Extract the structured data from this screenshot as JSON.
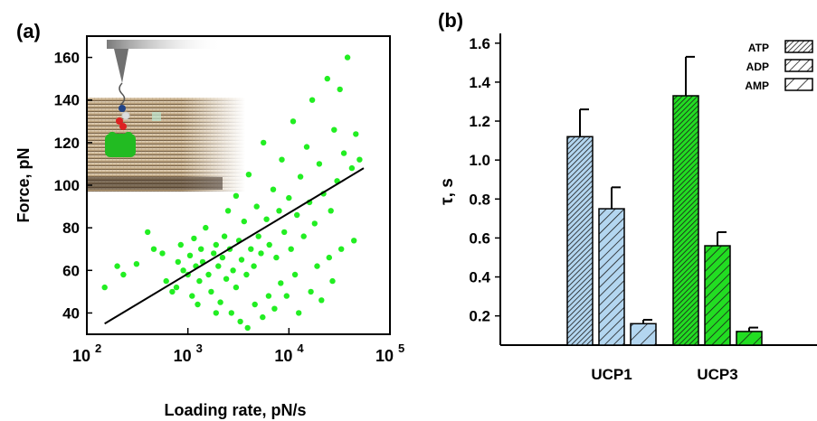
{
  "chart_data": [
    {
      "panel_label": "(a)",
      "type": "scatter",
      "xlabel": "Loading rate, pN/s",
      "ylabel": "Force, pN",
      "xscale": "log",
      "xlim": [
        100,
        100000
      ],
      "ylim": [
        30,
        170
      ],
      "xticks": [
        {
          "value": 100,
          "base": "10",
          "exp": "2"
        },
        {
          "value": 1000,
          "base": "10",
          "exp": "3"
        },
        {
          "value": 10000,
          "base": "10",
          "exp": "4"
        },
        {
          "value": 100000,
          "base": "10",
          "exp": "5"
        }
      ],
      "yticks": [
        40,
        60,
        80,
        100,
        120,
        140,
        160
      ],
      "series": [
        {
          "color": "#22ee22",
          "points": [
            [
              150,
              52
            ],
            [
              200,
              62
            ],
            [
              230,
              58
            ],
            [
              310,
              63
            ],
            [
              400,
              78
            ],
            [
              460,
              70
            ],
            [
              560,
              68
            ],
            [
              610,
              55
            ],
            [
              700,
              50
            ],
            [
              770,
              52
            ],
            [
              800,
              64
            ],
            [
              850,
              72
            ],
            [
              900,
              60
            ],
            [
              1000,
              58
            ],
            [
              1050,
              67
            ],
            [
              1100,
              48
            ],
            [
              1150,
              75
            ],
            [
              1200,
              62
            ],
            [
              1300,
              55
            ],
            [
              1350,
              70
            ],
            [
              1400,
              64
            ],
            [
              1500,
              80
            ],
            [
              1600,
              58
            ],
            [
              1700,
              50
            ],
            [
              1800,
              68
            ],
            [
              1900,
              72
            ],
            [
              2000,
              62
            ],
            [
              2100,
              45
            ],
            [
              2200,
              66
            ],
            [
              2300,
              76
            ],
            [
              2400,
              56
            ],
            [
              2500,
              88
            ],
            [
              2600,
              70
            ],
            [
              2800,
              60
            ],
            [
              3000,
              52
            ],
            [
              3000,
              95
            ],
            [
              3200,
              74
            ],
            [
              3400,
              65
            ],
            [
              3600,
              83
            ],
            [
              3800,
              58
            ],
            [
              4000,
              105
            ],
            [
              4200,
              70
            ],
            [
              4500,
              62
            ],
            [
              4800,
              90
            ],
            [
              5000,
              76
            ],
            [
              5300,
              68
            ],
            [
              5600,
              120
            ],
            [
              6000,
              84
            ],
            [
              6400,
              72
            ],
            [
              7000,
              98
            ],
            [
              7500,
              66
            ],
            [
              8000,
              88
            ],
            [
              8500,
              112
            ],
            [
              9000,
              78
            ],
            [
              10000,
              94
            ],
            [
              10500,
              70
            ],
            [
              11000,
              130
            ],
            [
              12000,
              86
            ],
            [
              13000,
              104
            ],
            [
              14000,
              76
            ],
            [
              15000,
              118
            ],
            [
              16000,
              92
            ],
            [
              17000,
              140
            ],
            [
              18000,
              82
            ],
            [
              20000,
              110
            ],
            [
              22000,
              96
            ],
            [
              24000,
              150
            ],
            [
              26000,
              88
            ],
            [
              28000,
              126
            ],
            [
              30000,
              102
            ],
            [
              32000,
              145
            ],
            [
              35000,
              115
            ],
            [
              38000,
              160
            ],
            [
              42000,
              108
            ],
            [
              46000,
              124
            ],
            [
              50000,
              112
            ],
            [
              2700,
              40
            ],
            [
              3300,
              36
            ],
            [
              4600,
              44
            ],
            [
              5500,
              38
            ],
            [
              7200,
              42
            ],
            [
              9500,
              48
            ],
            [
              12500,
              40
            ],
            [
              16500,
              50
            ],
            [
              21000,
              46
            ],
            [
              27000,
              55
            ],
            [
              1250,
              44
            ],
            [
              1900,
              40
            ],
            [
              3900,
              33
            ],
            [
              6300,
              48
            ],
            [
              8300,
              54
            ],
            [
              11500,
              58
            ],
            [
              19000,
              62
            ],
            [
              25000,
              66
            ],
            [
              33000,
              70
            ],
            [
              44000,
              74
            ]
          ]
        }
      ],
      "fit_line": {
        "color": "#000000",
        "points": [
          [
            150,
            35
          ],
          [
            55000,
            108
          ]
        ]
      }
    },
    {
      "panel_label": "(b)",
      "type": "bar",
      "ylabel": "τ, s",
      "ylim": [
        0.05,
        1.65
      ],
      "yticks": [
        "0.2",
        "0.4",
        "0.6",
        "0.8",
        "1.0",
        "1.2",
        "1.4",
        "1.6"
      ],
      "categories": [
        "UCP1",
        "UCP3"
      ],
      "series": [
        {
          "name": "ATP",
          "hatch": "dense",
          "values": [
            1.12,
            1.33
          ],
          "errors": [
            0.14,
            0.2
          ]
        },
        {
          "name": "ADP",
          "hatch": "medium",
          "values": [
            0.75,
            0.56
          ],
          "errors": [
            0.11,
            0.07
          ]
        },
        {
          "name": "AMP",
          "hatch": "sparse",
          "values": [
            0.16,
            0.12
          ],
          "errors": [
            0.02,
            0.02
          ]
        }
      ],
      "category_colors": [
        "#b3d6f0",
        "#22dd22"
      ],
      "legend": "top-right"
    }
  ]
}
